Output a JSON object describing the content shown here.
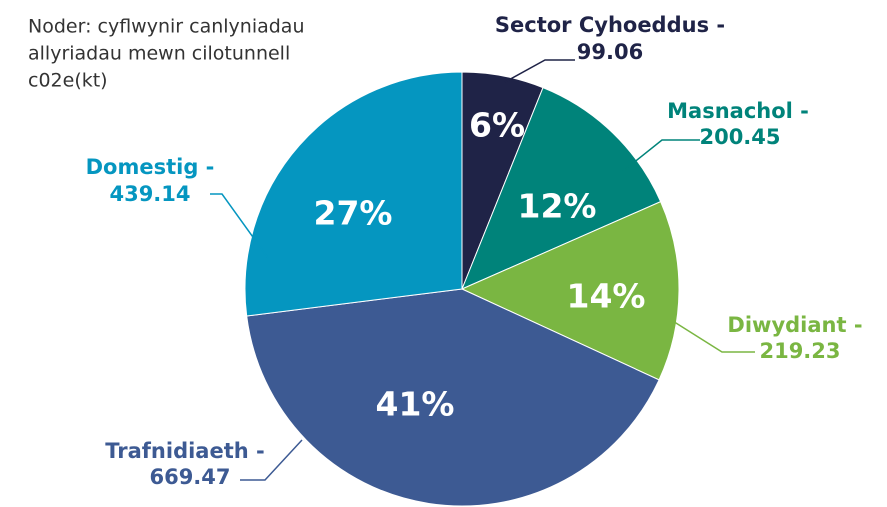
{
  "chart_data": {
    "type": "pie",
    "note": [
      "Noder: cyflwynir canlyniadau",
      "allyriadau mewn cilotunnell",
      "c02e(kt)"
    ],
    "categories": [
      "Sector Cyhoeddus -",
      "Masnachol -",
      "Diwydiant -",
      "Trafnidiaeth -",
      "Domestig -"
    ],
    "values": [
      99.06,
      200.45,
      219.23,
      669.47,
      439.14
    ],
    "percent_labels": [
      "6%",
      "12%",
      "14%",
      "41%",
      "27%"
    ],
    "colors": [
      "#1f2347",
      "#00837a",
      "#7ab642",
      "#3d5a93",
      "#0596c0"
    ]
  }
}
